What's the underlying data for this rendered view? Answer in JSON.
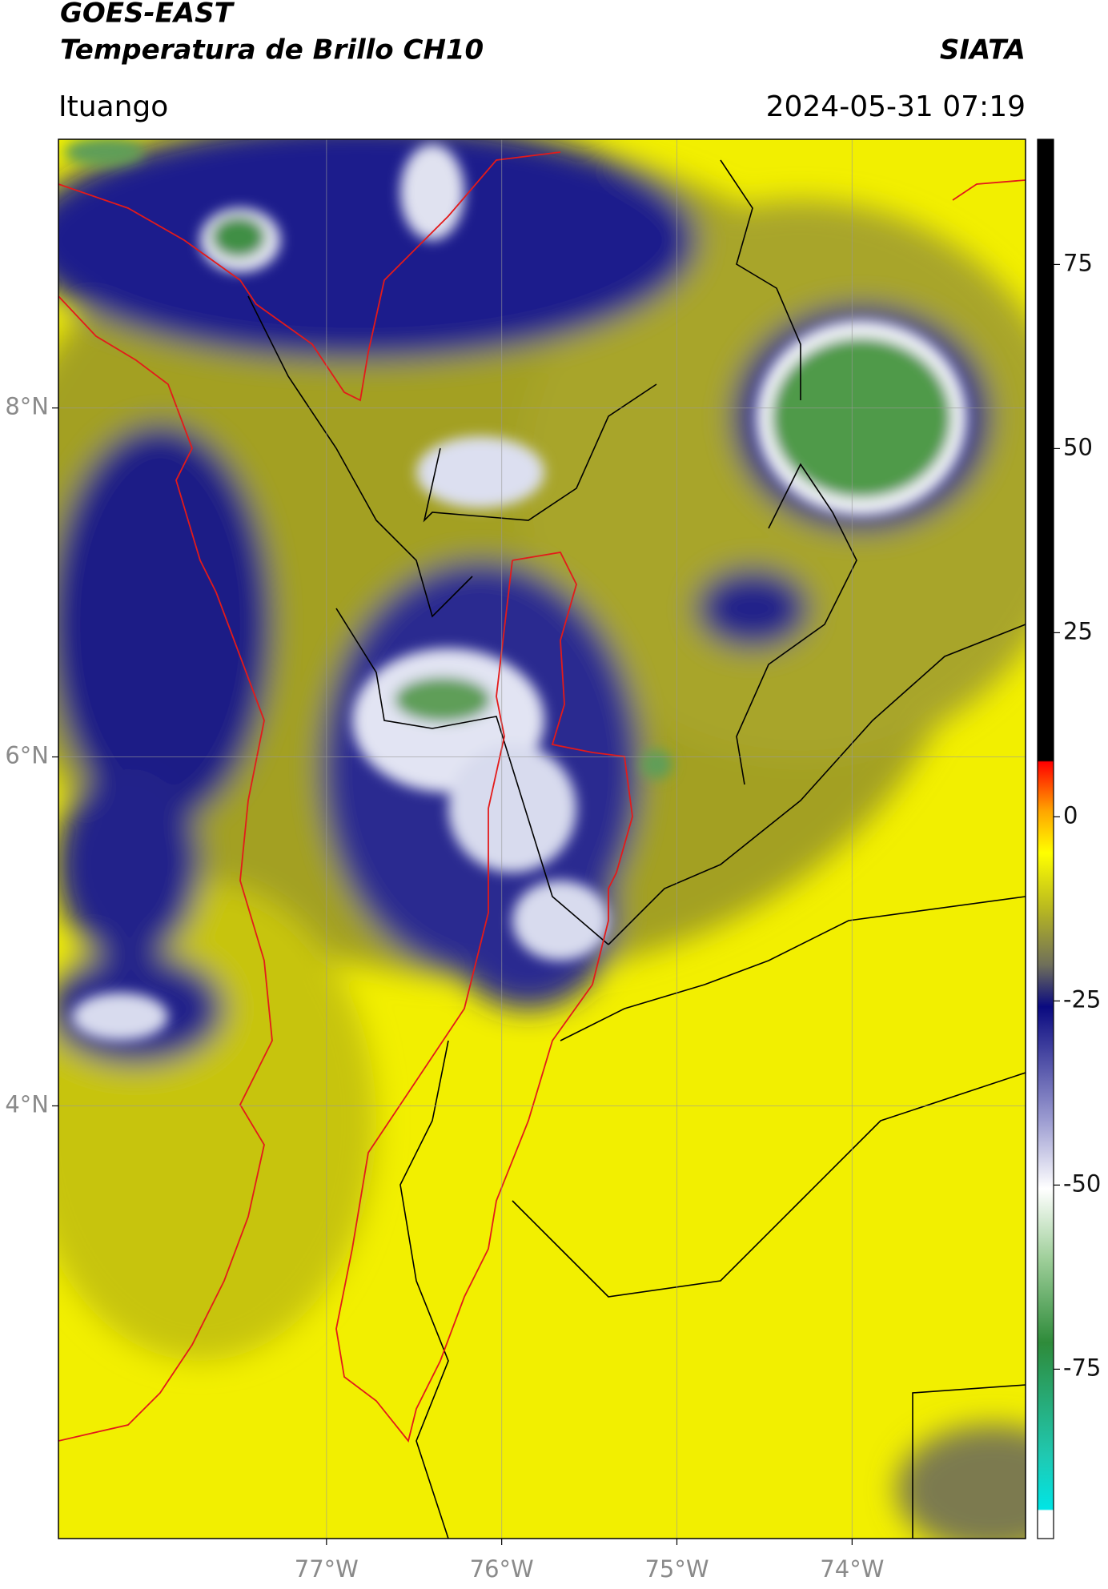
{
  "header": {
    "title": "GOES-EAST",
    "subtitle": "Temperatura de Brillo CH10",
    "source": "SIATA",
    "location": "Ituango",
    "datetime": "2024-05-31 07:19"
  },
  "map": {
    "lon_range": [
      -78.53,
      -73.01
    ],
    "lat_range": [
      1.52,
      9.54
    ],
    "grid": true,
    "lon_ticks": [
      {
        "value": -77,
        "label": "77°W"
      },
      {
        "value": -76,
        "label": "76°W"
      },
      {
        "value": -75,
        "label": "75°W"
      },
      {
        "value": -74,
        "label": "74°W"
      }
    ],
    "lat_ticks": [
      {
        "value": 8,
        "label": "8°N"
      },
      {
        "value": 6,
        "label": "6°N"
      },
      {
        "value": 4,
        "label": "4°N"
      }
    ]
  },
  "colorbar": {
    "range": [
      -98,
      92
    ],
    "ticks": [
      75,
      50,
      25,
      0,
      -25,
      -50,
      -75
    ]
  }
}
